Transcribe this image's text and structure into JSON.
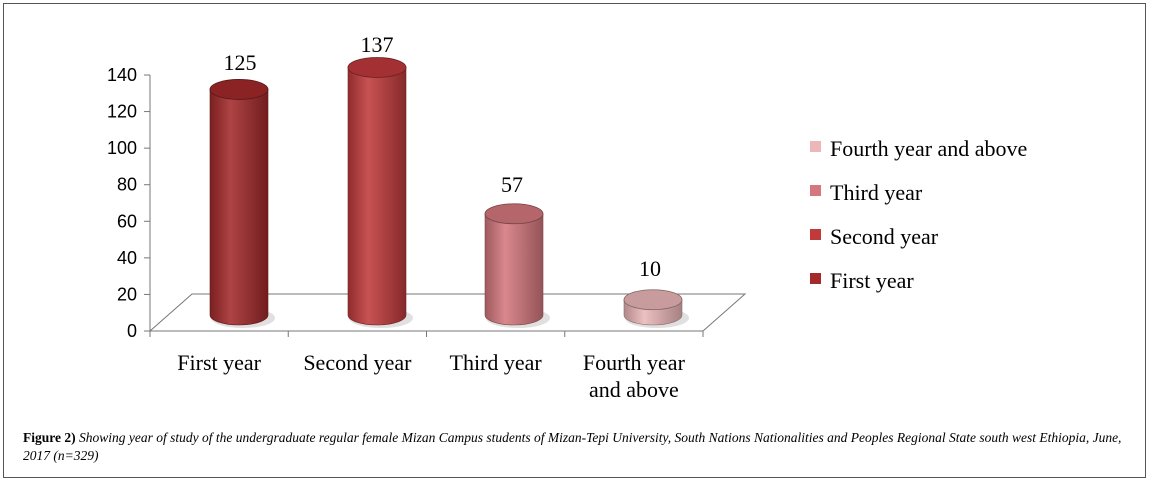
{
  "chart_data": {
    "type": "bar",
    "style": "3d-cylinder",
    "categories": [
      "First year",
      "Second year",
      "Third year",
      "Fourth year and above"
    ],
    "values": [
      125,
      137,
      57,
      10
    ],
    "ylim": [
      0,
      140
    ],
    "yticks": [
      0,
      20,
      40,
      60,
      80,
      100,
      120,
      140
    ],
    "grid": false,
    "legend": {
      "placement": "right",
      "entries": [
        "Fourth year and above",
        "Third year",
        "Second year",
        "First year"
      ]
    },
    "colors": {
      "First year": "#a3292b",
      "Second year": "#c03a3c",
      "Third year": "#d4787d",
      "Fourth year and above": "#ebb7b9"
    }
  },
  "caption": {
    "label": "Figure 2)",
    "text": "Showing year of study of the undergraduate regular female Mizan Campus students of Mizan-Tepi University, South Nations Nationalities and Peoples Regional State south west Ethiopia, June, 2017 (n=329)"
  }
}
